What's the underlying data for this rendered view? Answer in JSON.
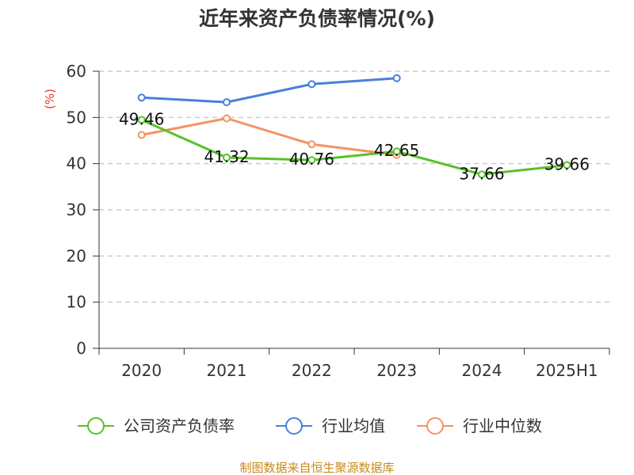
{
  "chart_data": {
    "type": "line",
    "title": "近年来资产负债率情况(%)",
    "ylabel": "(%)",
    "ylim": [
      0,
      60
    ],
    "yticks": [
      0,
      10,
      20,
      30,
      40,
      50,
      60
    ],
    "grid": true,
    "legend_position": "bottom",
    "categories": [
      "2020",
      "2021",
      "2022",
      "2023",
      "2024",
      "2025H1"
    ],
    "series": [
      {
        "name": "公司资产负债率",
        "color": "#58c12a",
        "values": [
          49.46,
          41.32,
          40.76,
          42.65,
          37.66,
          39.66
        ],
        "labels": [
          "49.46",
          "41.32",
          "40.76",
          "42.65",
          "37.66",
          "39.66"
        ]
      },
      {
        "name": "行业均值",
        "color": "#4a7fdc",
        "values": [
          54.3,
          53.3,
          57.2,
          58.5,
          null,
          null
        ]
      },
      {
        "name": "行业中位数",
        "color": "#f59262",
        "values": [
          46.2,
          49.8,
          44.2,
          41.9,
          null,
          null
        ]
      }
    ],
    "source": "制图数据来自恒生聚源数据库"
  }
}
